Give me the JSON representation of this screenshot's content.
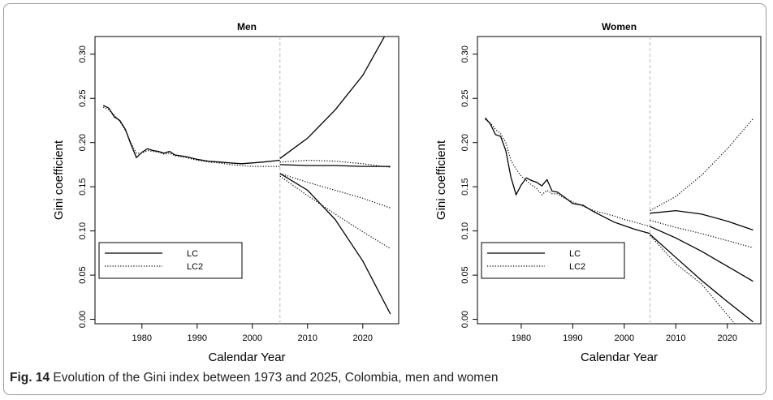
{
  "caption": {
    "label": "Fig. 14",
    "text": "Evolution of the Gini index between 1973 and 2025, Colombia, men and women"
  },
  "chart_data": [
    {
      "type": "line",
      "title": "Men",
      "xlabel": "Calendar Year",
      "ylabel": "Gini coefficient",
      "xlim": [
        1971.5,
        2026.5
      ],
      "ylim": [
        -0.005,
        0.32
      ],
      "xticks": [
        1980,
        1990,
        2000,
        2010,
        2020
      ],
      "yticks": [
        0.0,
        0.05,
        0.1,
        0.15,
        0.2,
        0.25,
        0.3
      ],
      "ytick_labels": [
        "0.00",
        "0.05",
        "0.10",
        "0.15",
        "0.20",
        "0.25",
        "0.30"
      ],
      "vline": 2005,
      "legend": {
        "position": "bottom-left",
        "entries": [
          {
            "name": "LC",
            "style": "solid"
          },
          {
            "name": "LC2",
            "style": "dotted"
          }
        ]
      },
      "series": [
        {
          "name": "LC",
          "style": "solid",
          "role": "observed",
          "x": [
            1973,
            1974,
            1975,
            1976,
            1977,
            1978,
            1979,
            1980,
            1981,
            1982,
            1983,
            1984,
            1985,
            1986,
            1987,
            1988,
            1990,
            1992,
            1994,
            1996,
            1998,
            2000,
            2002,
            2005
          ],
          "y": [
            0.242,
            0.239,
            0.229,
            0.225,
            0.215,
            0.198,
            0.183,
            0.189,
            0.193,
            0.191,
            0.19,
            0.188,
            0.19,
            0.186,
            0.185,
            0.184,
            0.181,
            0.179,
            0.178,
            0.177,
            0.176,
            0.177,
            0.178,
            0.18
          ]
        },
        {
          "name": "LC2",
          "style": "dotted",
          "role": "observed",
          "x": [
            1973,
            1974,
            1975,
            1976,
            1977,
            1978,
            1979,
            1980,
            1981,
            1982,
            1983,
            1984,
            1985,
            1986,
            1987,
            1988,
            1990,
            1992,
            1994,
            1996,
            1998,
            2000,
            2002,
            2005
          ],
          "y": [
            0.24,
            0.237,
            0.231,
            0.224,
            0.214,
            0.2,
            0.188,
            0.188,
            0.191,
            0.19,
            0.189,
            0.187,
            0.188,
            0.185,
            0.184,
            0.183,
            0.18,
            0.178,
            0.177,
            0.175,
            0.174,
            0.173,
            0.173,
            0.173
          ]
        },
        {
          "name": "LC upper",
          "style": "solid",
          "role": "projection",
          "x": [
            2005,
            2010,
            2015,
            2020,
            2025
          ],
          "y": [
            0.182,
            0.205,
            0.237,
            0.276,
            0.332
          ]
        },
        {
          "name": "LC central",
          "style": "solid",
          "role": "projection",
          "x": [
            2005,
            2010,
            2015,
            2020,
            2025
          ],
          "y": [
            0.175,
            0.174,
            0.174,
            0.173,
            0.173
          ]
        },
        {
          "name": "LC lower",
          "style": "solid",
          "role": "projection",
          "x": [
            2005,
            2010,
            2015,
            2020,
            2025
          ],
          "y": [
            0.165,
            0.146,
            0.113,
            0.066,
            0.006
          ]
        },
        {
          "name": "LC2 upper",
          "style": "dotted",
          "role": "projection",
          "x": [
            2005,
            2010,
            2015,
            2020,
            2025
          ],
          "y": [
            0.178,
            0.18,
            0.179,
            0.176,
            0.172
          ]
        },
        {
          "name": "LC2 central",
          "style": "dotted",
          "role": "projection",
          "x": [
            2005,
            2010,
            2015,
            2020,
            2025
          ],
          "y": [
            0.165,
            0.155,
            0.146,
            0.137,
            0.126
          ]
        },
        {
          "name": "LC2 lower",
          "style": "dotted",
          "role": "projection",
          "x": [
            2005,
            2010,
            2015,
            2020,
            2025
          ],
          "y": [
            0.162,
            0.14,
            0.119,
            0.099,
            0.08
          ]
        }
      ]
    },
    {
      "type": "line",
      "title": "Women",
      "xlabel": "Calendar Year",
      "ylabel": "Gini coefficient",
      "xlim": [
        1971.5,
        2026.5
      ],
      "ylim": [
        -0.005,
        0.32
      ],
      "xticks": [
        1980,
        1990,
        2000,
        2010,
        2020
      ],
      "yticks": [
        0.0,
        0.05,
        0.1,
        0.15,
        0.2,
        0.25,
        0.3
      ],
      "ytick_labels": [
        "0.00",
        "0.05",
        "0.10",
        "0.15",
        "0.20",
        "0.25",
        "0.30"
      ],
      "vline": 2005,
      "legend": {
        "position": "bottom-left",
        "entries": [
          {
            "name": "LC",
            "style": "solid"
          },
          {
            "name": "LC2",
            "style": "dotted"
          }
        ]
      },
      "series": [
        {
          "name": "LC",
          "style": "solid",
          "role": "observed",
          "x": [
            1973,
            1974,
            1975,
            1976,
            1977,
            1978,
            1979,
            1980,
            1981,
            1982,
            1983,
            1984,
            1985,
            1986,
            1987,
            1988,
            1990,
            1992,
            1994,
            1996,
            1998,
            2000,
            2002,
            2005
          ],
          "y": [
            0.228,
            0.221,
            0.209,
            0.207,
            0.191,
            0.161,
            0.141,
            0.152,
            0.16,
            0.157,
            0.155,
            0.151,
            0.158,
            0.145,
            0.144,
            0.14,
            0.131,
            0.129,
            0.122,
            0.116,
            0.11,
            0.106,
            0.102,
            0.097
          ]
        },
        {
          "name": "LC2",
          "style": "dotted",
          "role": "observed",
          "x": [
            1973,
            1974,
            1975,
            1976,
            1977,
            1978,
            1979,
            1980,
            1981,
            1982,
            1983,
            1984,
            1985,
            1986,
            1987,
            1988,
            1990,
            1992,
            1994,
            1996,
            1998,
            2000,
            2002,
            2005
          ],
          "y": [
            0.226,
            0.222,
            0.215,
            0.21,
            0.2,
            0.18,
            0.17,
            0.162,
            0.157,
            0.152,
            0.148,
            0.141,
            0.146,
            0.142,
            0.142,
            0.138,
            0.133,
            0.128,
            0.123,
            0.12,
            0.117,
            0.113,
            0.11,
            0.105
          ]
        },
        {
          "name": "LC upper",
          "style": "solid",
          "role": "projection",
          "x": [
            2005,
            2010,
            2015,
            2020,
            2025
          ],
          "y": [
            0.12,
            0.123,
            0.119,
            0.111,
            0.101
          ]
        },
        {
          "name": "LC central",
          "style": "solid",
          "role": "projection",
          "x": [
            2005,
            2010,
            2015,
            2020,
            2025
          ],
          "y": [
            0.105,
            0.092,
            0.077,
            0.06,
            0.043
          ]
        },
        {
          "name": "LC lower",
          "style": "solid",
          "role": "projection",
          "x": [
            2005,
            2010,
            2015,
            2020,
            2025
          ],
          "y": [
            0.096,
            0.07,
            0.044,
            0.02,
            -0.003
          ]
        },
        {
          "name": "LC2 upper",
          "style": "dotted",
          "role": "projection",
          "x": [
            2005,
            2010,
            2015,
            2020,
            2025
          ],
          "y": [
            0.123,
            0.139,
            0.163,
            0.193,
            0.227
          ]
        },
        {
          "name": "LC2 central",
          "style": "dotted",
          "role": "projection",
          "x": [
            2005,
            2010,
            2015,
            2020,
            2025
          ],
          "y": [
            0.112,
            0.104,
            0.097,
            0.089,
            0.081
          ]
        },
        {
          "name": "LC2 lower",
          "style": "dotted",
          "role": "projection",
          "x": [
            2005,
            2010,
            2015,
            2020,
            2025
          ],
          "y": [
            0.095,
            0.063,
            0.04,
            0.005,
            -0.03
          ]
        }
      ]
    }
  ]
}
